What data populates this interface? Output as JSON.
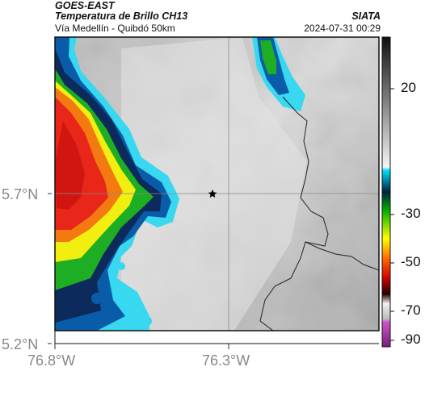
{
  "header": {
    "satellite": "GOES-EAST",
    "product": "Temperatura de Brillo CH13",
    "location": "Vía Medellín - Quibdó 50km",
    "source": "SIATA",
    "datetime": "2024-07-31 00:29"
  },
  "map": {
    "lon_labels": [
      "76.8°W",
      "76.3°W"
    ],
    "lat_labels": [
      "5.7°N",
      "5.2°N"
    ],
    "marker": "star-marker"
  },
  "colorbar": {
    "labels": [
      "20",
      "-30",
      "-50",
      "-70",
      "-90"
    ]
  },
  "colors": {
    "cold_red": "#e8261a",
    "warm_gray": "#cfcfcf"
  }
}
